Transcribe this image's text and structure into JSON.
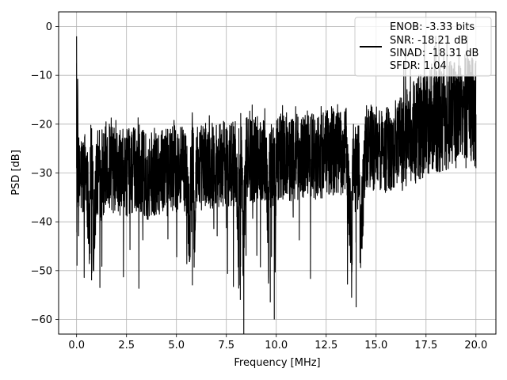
{
  "chart_data": {
    "type": "line",
    "title": "",
    "xlabel": "Frequency [MHz]",
    "ylabel": "PSD [dB]",
    "xlim": [
      -0.9,
      21.0
    ],
    "ylim": [
      -63,
      3
    ],
    "xticks": [
      0.0,
      2.5,
      5.0,
      7.5,
      10.0,
      12.5,
      15.0,
      17.5,
      20.0
    ],
    "xtick_labels": [
      "0.0",
      "2.5",
      "5.0",
      "7.5",
      "10.0",
      "12.5",
      "15.0",
      "17.5",
      "20.0"
    ],
    "yticks": [
      0,
      -10,
      -20,
      -30,
      -40,
      -50,
      -60
    ],
    "ytick_labels": [
      "0",
      "−10",
      "−20",
      "−30",
      "−40",
      "−50",
      "−60"
    ],
    "grid": true,
    "legend_position": "top-right",
    "series": [
      {
        "color": "#000000",
        "x": [
          0.0,
          0.02,
          0.05,
          0.1,
          0.2,
          0.3,
          0.5,
          0.75,
          1.0,
          1.25,
          1.5,
          2.0,
          2.5,
          3.0,
          3.5,
          4.0,
          4.5,
          5.0,
          5.5,
          5.8,
          6.0,
          6.5,
          7.0,
          7.5,
          8.0,
          8.2,
          8.5,
          9.0,
          9.5,
          9.7,
          9.9,
          10.0,
          10.5,
          11.0,
          11.5,
          12.0,
          12.5,
          13.0,
          13.5,
          14.0,
          14.5,
          15.0,
          15.5,
          16.0,
          16.5,
          17.0,
          17.5,
          18.0,
          18.5,
          19.0,
          19.5,
          20.0
        ],
        "y": [
          -7.5,
          -49.0,
          -18.0,
          -34.0,
          -30.0,
          -31.0,
          -29.0,
          -52.0,
          -30.0,
          -31.0,
          -28.0,
          -30.0,
          -30.0,
          -29.0,
          -31.0,
          -29.5,
          -30.0,
          -29.0,
          -30.0,
          -53.0,
          -28.5,
          -29.0,
          -28.0,
          -28.0,
          -28.5,
          -56.0,
          -27.5,
          -27.0,
          -27.0,
          -56.5,
          -60.0,
          -27.0,
          -26.5,
          -27.0,
          -26.0,
          -26.5,
          -26.0,
          -25.5,
          -26.0,
          -57.5,
          -25.0,
          -25.0,
          -25.5,
          -24.0,
          -23.0,
          -21.0,
          -20.0,
          -19.0,
          -18.5,
          -17.0,
          -16.0,
          -18.0
        ]
      }
    ],
    "legend": {
      "entries": [
        "ENOB: -3.33 bits",
        "SNR: -18.21 dB",
        "SINAD: -18.31 dB",
        "SFDR: 1.04"
      ]
    }
  }
}
